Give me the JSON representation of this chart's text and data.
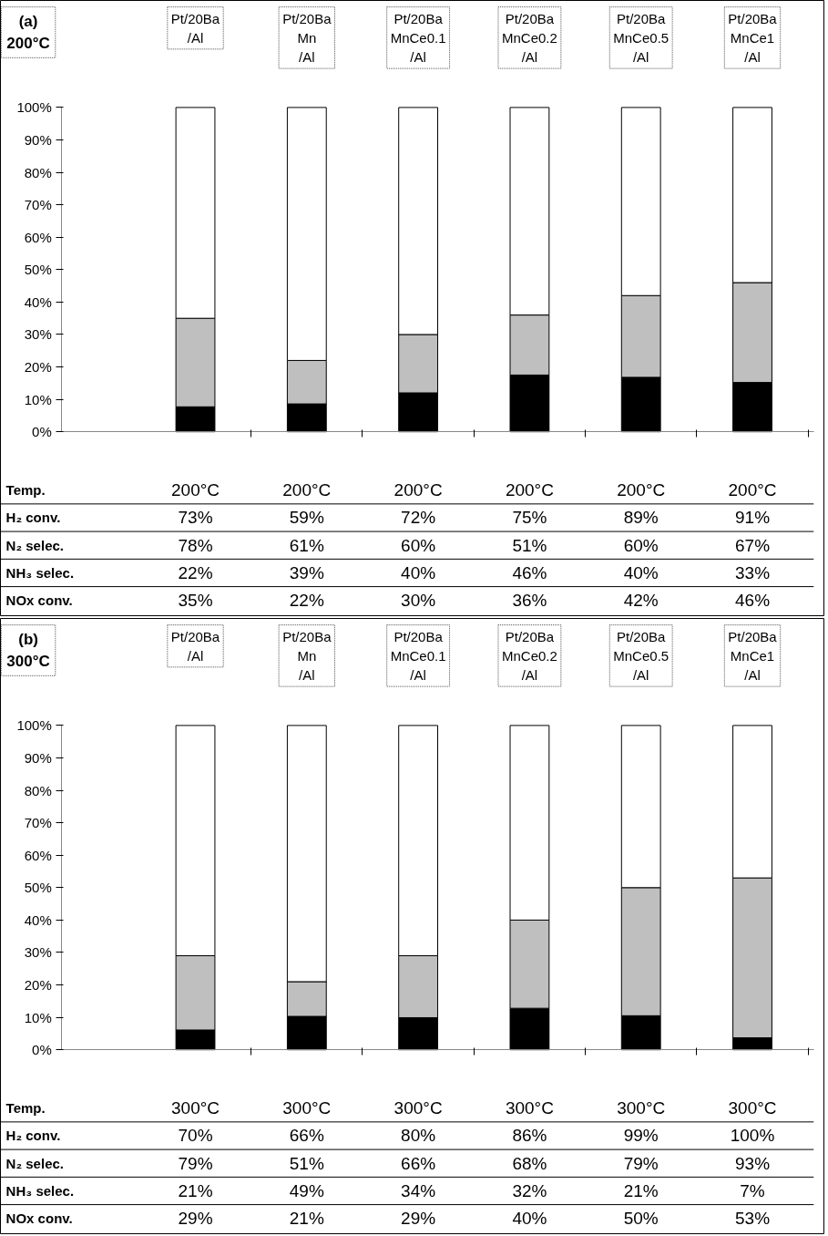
{
  "chart_data": [
    {
      "type": "bar",
      "title": "(a)",
      "subtitle": "200°C",
      "stacked": true,
      "grid": false,
      "categories": [
        "Pt/20Ba\n/Al",
        "Pt/20Ba\nMn\n/Al",
        "Pt/20Ba\nMnCe0.1\n/Al",
        "Pt/20Ba\nMnCe0.2\n/Al",
        "Pt/20Ba\nMnCe0.5\n/Al",
        "Pt/20Ba\nMnCe1\n/Al"
      ],
      "ylim": [
        0,
        100
      ],
      "yticks": [
        {
          "value": 0,
          "label": "0%"
        },
        {
          "value": 10,
          "label": "10%"
        },
        {
          "value": 20,
          "label": "20%"
        },
        {
          "value": 30,
          "label": "30%"
        },
        {
          "value": 40,
          "label": "40%"
        },
        {
          "value": 50,
          "label": "50%"
        },
        {
          "value": 60,
          "label": "60%"
        },
        {
          "value": 70,
          "label": "70%"
        },
        {
          "value": 80,
          "label": "80%"
        },
        {
          "value": 90,
          "label": "90%"
        },
        {
          "value": 100,
          "label": "100%"
        }
      ],
      "series": [
        {
          "color": "#000000",
          "values": [
            7.7,
            8.6,
            12,
            17.5,
            16.8,
            15.2
          ]
        },
        {
          "color": "#bfbfbf",
          "values": [
            27.3,
            13.4,
            18,
            18.5,
            25.2,
            30.8
          ]
        },
        {
          "color": "#ffffff",
          "values": [
            65,
            78,
            70,
            64,
            58,
            54
          ]
        }
      ],
      "annotations": [
        "Temp.",
        "200°C",
        "200°C",
        "200°C",
        "200°C",
        "200°C",
        "200°C",
        "H₂ conv.",
        "73%",
        "59%",
        "72%",
        "75%",
        "89%",
        "91%",
        "N₂ selec.",
        "78%",
        "61%",
        "60%",
        "51%",
        "60%",
        "67%",
        "NH₃ selec.",
        "22%",
        "39%",
        "40%",
        "46%",
        "40%",
        "33%",
        "NOx conv.",
        "35%",
        "22%",
        "30%",
        "36%",
        "42%",
        "46%"
      ]
    },
    {
      "type": "bar",
      "title": "(b)",
      "subtitle": "300°C",
      "stacked": true,
      "grid": false,
      "categories": [
        "Pt/20Ba\n/Al",
        "Pt/20Ba\nMn\n/Al",
        "Pt/20Ba\nMnCe0.1\n/Al",
        "Pt/20Ba\nMnCe0.2\n/Al",
        "Pt/20Ba\nMnCe0.5\n/Al",
        "Pt/20Ba\nMnCe1\n/Al"
      ],
      "ylim": [
        0,
        100
      ],
      "yticks": [
        {
          "value": 0,
          "label": "0%"
        },
        {
          "value": 10,
          "label": "10%"
        },
        {
          "value": 20,
          "label": "20%"
        },
        {
          "value": 30,
          "label": "30%"
        },
        {
          "value": 40,
          "label": "40%"
        },
        {
          "value": 50,
          "label": "50%"
        },
        {
          "value": 60,
          "label": "60%"
        },
        {
          "value": 70,
          "label": "70%"
        },
        {
          "value": 80,
          "label": "80%"
        },
        {
          "value": 90,
          "label": "90%"
        },
        {
          "value": 100,
          "label": "100%"
        }
      ],
      "series": [
        {
          "color": "#000000",
          "values": [
            6.1,
            10.3,
            9.9,
            12.8,
            10.5,
            3.7
          ]
        },
        {
          "color": "#bfbfbf",
          "values": [
            22.9,
            10.7,
            19.1,
            27.2,
            39.5,
            49.3
          ]
        },
        {
          "color": "#ffffff",
          "values": [
            71,
            79,
            71,
            60,
            50,
            47
          ]
        }
      ],
      "annotations": [
        "Temp.",
        "300°C",
        "300°C",
        "300°C",
        "300°C",
        "300°C",
        "300°C",
        "H₂ conv.",
        "70%",
        "66%",
        "80%",
        "86%",
        "99%",
        "100%",
        "N₂ selec.",
        "79%",
        "51%",
        "66%",
        "68%",
        "79%",
        "93%",
        "NH₃ selec.",
        "21%",
        "49%",
        "34%",
        "32%",
        "21%",
        "7%",
        "NOx conv.",
        "29%",
        "21%",
        "29%",
        "40%",
        "50%",
        "53%"
      ]
    }
  ]
}
